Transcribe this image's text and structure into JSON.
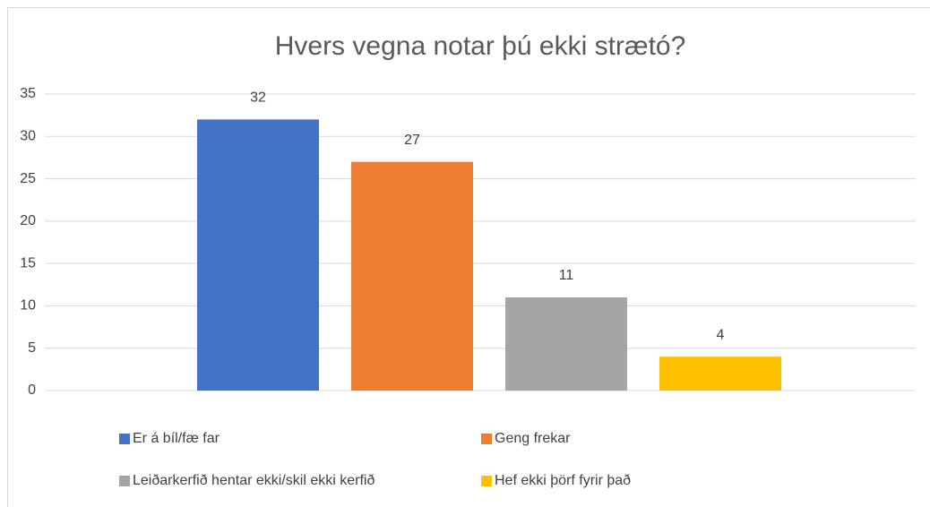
{
  "chart_data": {
    "type": "bar",
    "title": "Hvers vegna notar þú ekki strætó?",
    "categories": [
      null
    ],
    "series": [
      {
        "name": "Er á bíl/fæ far",
        "color": "#4472c4",
        "values": [
          32
        ]
      },
      {
        "name": "Geng frekar",
        "color": "#ed7d31",
        "values": [
          27
        ]
      },
      {
        "name": "Leiðarkerfið hentar ekki/skil ekki kerfið",
        "color": "#a5a5a5",
        "values": [
          11
        ]
      },
      {
        "name": "Hef ekki þörf fyrir það",
        "color": "#ffc000",
        "values": [
          4
        ]
      }
    ],
    "ylim": [
      0,
      35
    ],
    "yticks": [
      0,
      5,
      10,
      15,
      20,
      25,
      30,
      35
    ],
    "grid": true,
    "legend": "bottom"
  }
}
